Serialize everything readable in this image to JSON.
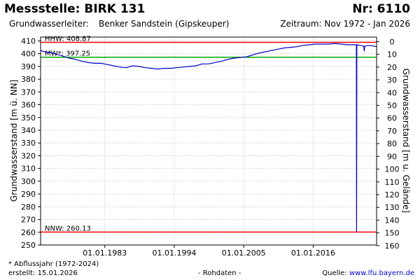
{
  "header": {
    "title": "Messstelle: BIRK 131",
    "number": "Nr: 6110",
    "aquifer_label": "Grundwasserleiter:",
    "aquifer_value": "Benker Sandstein (Gipskeuper)",
    "period": "Zeitraum: Nov 1972 - Jan 2026"
  },
  "footer": {
    "note": "* Abflussjahr (1972-2024)",
    "created": "erstellt:  15.01.2026",
    "raw_data": "- Rohdaten -",
    "source_label": "Quelle: ",
    "source_link": "www.lfu.bayern.de"
  },
  "colors": {
    "series": "#0000cc",
    "hhw_nnw": "#ff0000",
    "mw": "#00aa00",
    "axis": "#000000"
  },
  "chart_data": {
    "type": "line",
    "ylabel": "Grundwasserstand [m ü. NN]",
    "y2label": "Grundwasserstand [m u. Gelände]",
    "ylim": [
      250,
      413
    ],
    "y_ticks": [
      250,
      260,
      270,
      280,
      290,
      300,
      310,
      320,
      330,
      340,
      350,
      360,
      370,
      380,
      390,
      400,
      410
    ],
    "y2_ticks": [
      0,
      10,
      20,
      30,
      40,
      50,
      60,
      70,
      80,
      90,
      100,
      110,
      120,
      130,
      140,
      150,
      160
    ],
    "y2_ground_level": 409.5,
    "xlim": [
      "1972-11-01",
      "2026-01-15"
    ],
    "x_ticks": [
      {
        "date": "1983-01-01",
        "label": "01.01.1983"
      },
      {
        "date": "1994-01-01",
        "label": "01.01.1994"
      },
      {
        "date": "2005-01-01",
        "label": "01.01.2005"
      },
      {
        "date": "2016-01-01",
        "label": "01.01.2016"
      }
    ],
    "grid": true,
    "reference_lines": [
      {
        "name": "HHW",
        "label": "HHW: 408.87",
        "value": 408.87,
        "color": "#ff0000"
      },
      {
        "name": "MW",
        "label": "MW*: 397.25",
        "value": 397.25,
        "color": "#00aa00"
      },
      {
        "name": "NNW",
        "label": "NNW: 260.13",
        "value": 260.13,
        "color": "#ff0000"
      }
    ],
    "series": [
      {
        "color": "#0000cc",
        "points": [
          [
            "1972-11-01",
            402.5
          ],
          [
            "1973-06-01",
            401.5
          ],
          [
            "1974-06-01",
            401.0
          ],
          [
            "1975-06-01",
            399.5
          ],
          [
            "1976-06-01",
            398.0
          ],
          [
            "1977-06-01",
            396.5
          ],
          [
            "1978-06-01",
            395.5
          ],
          [
            "1979-06-01",
            394.0
          ],
          [
            "1980-06-01",
            393.0
          ],
          [
            "1981-06-01",
            392.5
          ],
          [
            "1982-06-01",
            392.5
          ],
          [
            "1983-06-01",
            391.5
          ],
          [
            "1984-06-01",
            390.5
          ],
          [
            "1985-06-01",
            389.5
          ],
          [
            "1986-06-01",
            389.0
          ],
          [
            "1987-06-01",
            390.5
          ],
          [
            "1988-06-01",
            390.0
          ],
          [
            "1989-06-01",
            389.0
          ],
          [
            "1990-06-01",
            388.5
          ],
          [
            "1991-06-01",
            388.0
          ],
          [
            "1992-06-01",
            388.5
          ],
          [
            "1993-06-01",
            388.5
          ],
          [
            "1994-06-01",
            389.0
          ],
          [
            "1995-06-01",
            389.5
          ],
          [
            "1996-06-01",
            390.0
          ],
          [
            "1997-06-01",
            390.5
          ],
          [
            "1998-06-01",
            392.0
          ],
          [
            "1999-06-01",
            392.0
          ],
          [
            "2000-06-01",
            393.0
          ],
          [
            "2001-06-01",
            394.0
          ],
          [
            "2002-06-01",
            395.5
          ],
          [
            "2003-06-01",
            396.5
          ],
          [
            "2004-06-01",
            397.0
          ],
          [
            "2005-06-01",
            397.5
          ],
          [
            "2006-06-01",
            399.0
          ],
          [
            "2007-06-01",
            400.5
          ],
          [
            "2008-06-01",
            401.5
          ],
          [
            "2009-06-01",
            402.5
          ],
          [
            "2010-06-01",
            403.5
          ],
          [
            "2011-06-01",
            404.5
          ],
          [
            "2012-06-01",
            405.0
          ],
          [
            "2013-06-01",
            405.5
          ],
          [
            "2014-06-01",
            406.5
          ],
          [
            "2015-06-01",
            407.0
          ],
          [
            "2016-06-01",
            407.5
          ],
          [
            "2017-06-01",
            407.5
          ],
          [
            "2018-06-01",
            407.5
          ],
          [
            "2019-06-01",
            408.0
          ],
          [
            "2020-06-01",
            407.5
          ],
          [
            "2021-06-01",
            407.0
          ],
          [
            "2022-06-01",
            407.0
          ],
          [
            "2022-11-01",
            407.0
          ],
          [
            "2022-11-15",
            260.13
          ],
          [
            "2022-12-01",
            407.0
          ],
          [
            "2023-06-01",
            406.5
          ],
          [
            "2024-01-01",
            406.0
          ],
          [
            "2024-02-01",
            402.0
          ],
          [
            "2024-03-01",
            406.0
          ],
          [
            "2025-01-01",
            406.5
          ],
          [
            "2026-01-15",
            405.5
          ]
        ]
      }
    ]
  }
}
